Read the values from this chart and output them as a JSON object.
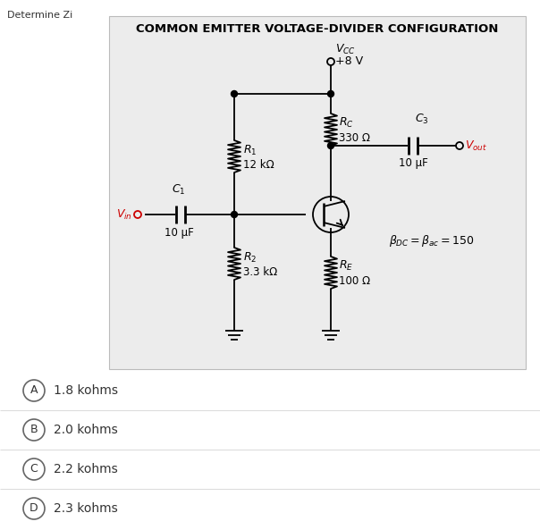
{
  "title": "COMMON EMITTER VOLTAGE-DIVIDER CONFIGURATION",
  "subtitle": "Determine Zi",
  "panel_bg": "#ececec",
  "outer_bg": "#ffffff",
  "vcc_value": "+8 V",
  "R1_value": "12 kΩ",
  "R2_value": "3.3 kΩ",
  "RC_value": "330 Ω",
  "RE_value": "100 Ω",
  "C1_value": "10 μF",
  "C3_value": "10 μF",
  "title_color": "#000000",
  "component_color": "#000000",
  "vin_color": "#cc0000",
  "vout_color": "#cc0000",
  "line_color": "#000000",
  "options": [
    {
      "letter": "A",
      "text": "1.8 kohms"
    },
    {
      "letter": "B",
      "text": "2.0 kohms"
    },
    {
      "letter": "C",
      "text": "2.2 kohms"
    },
    {
      "letter": "D",
      "text": "2.3 kohms"
    }
  ]
}
